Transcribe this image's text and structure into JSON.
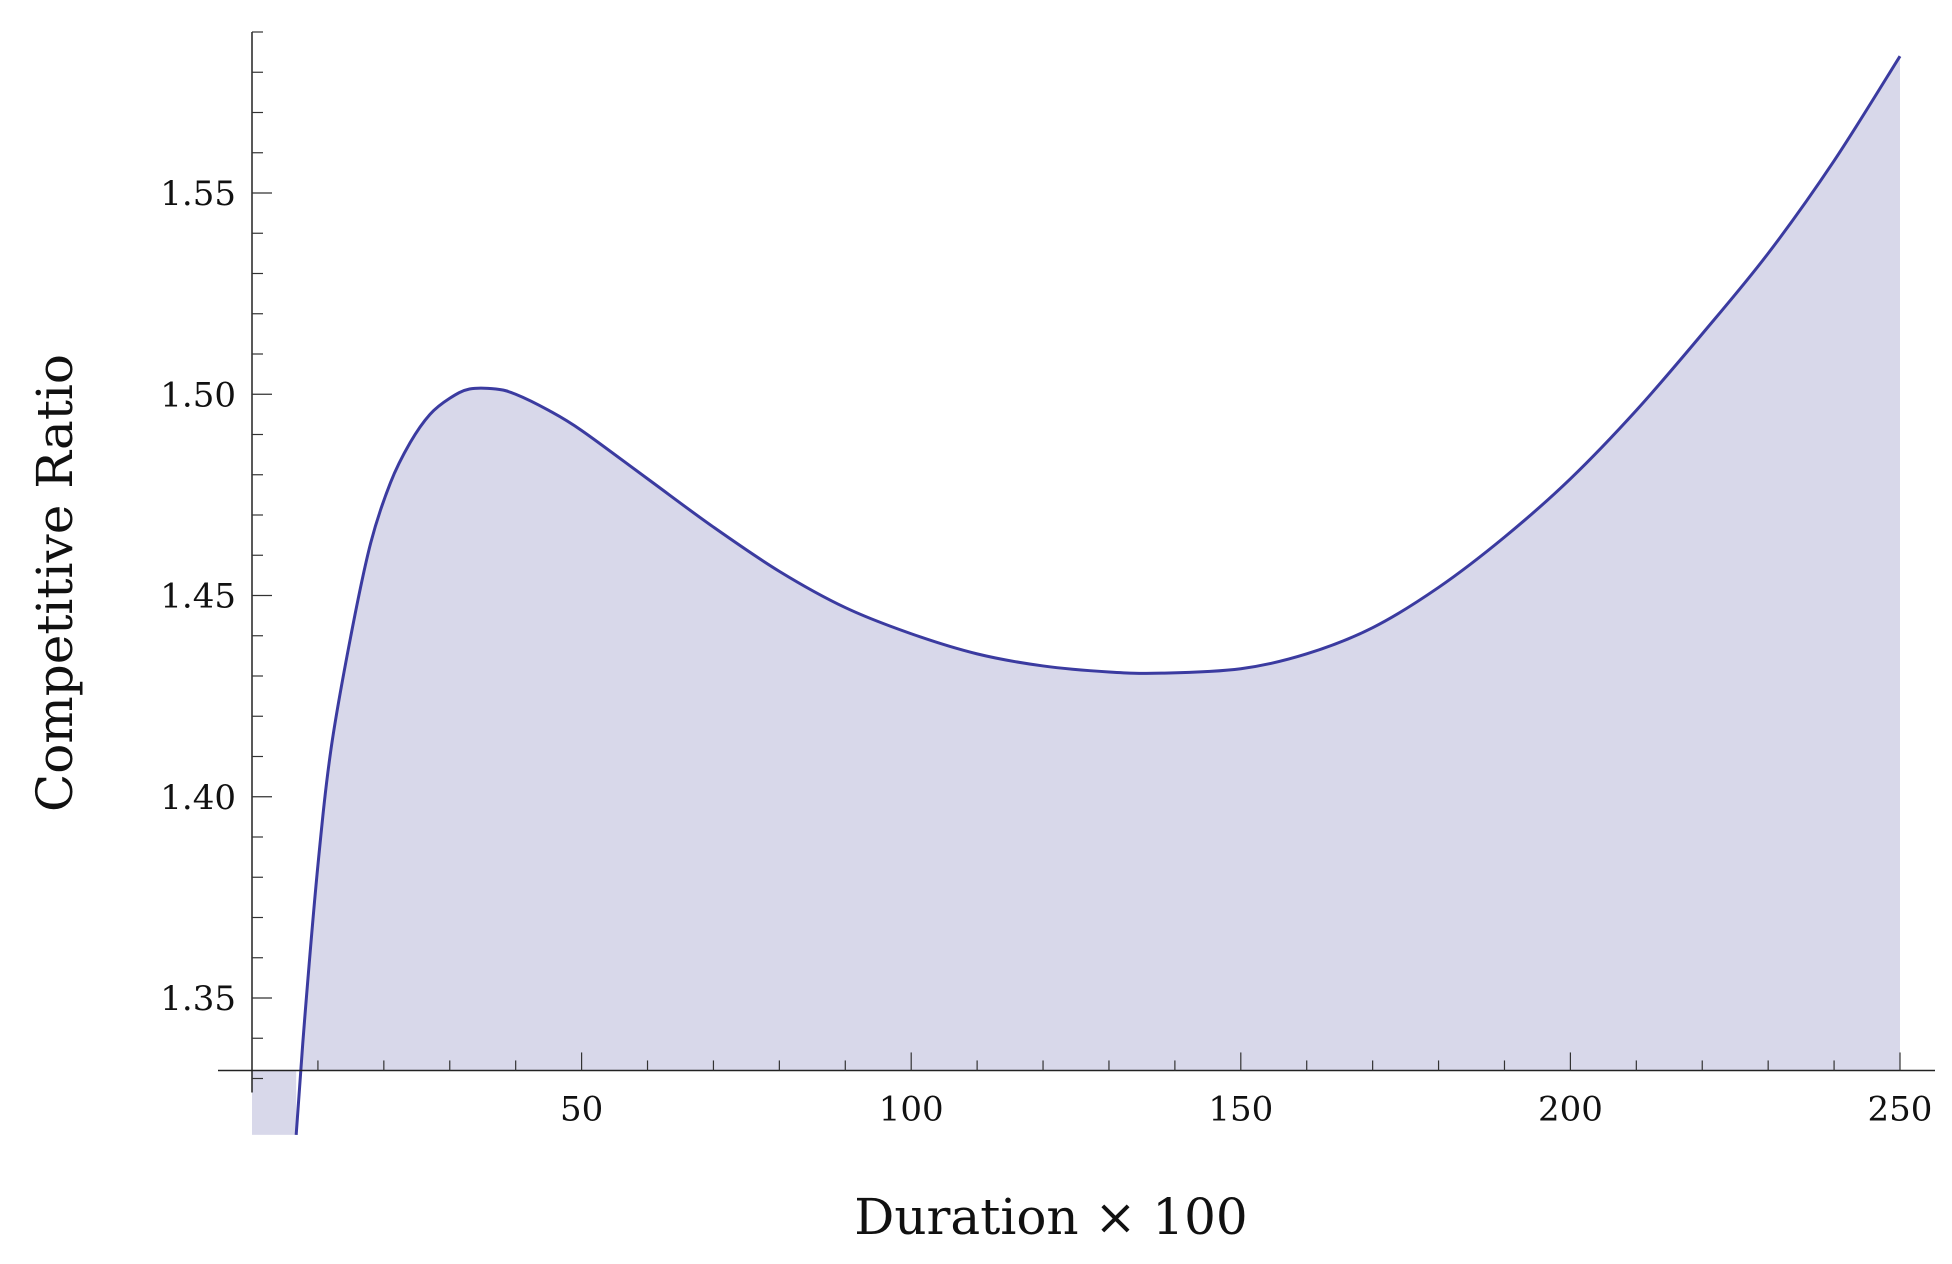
{
  "chart_data": {
    "type": "area",
    "xlabel": "Duration × 100",
    "ylabel": "Competitive Ratio",
    "xlim": [
      0,
      255
    ],
    "ylim": [
      1.316,
      1.59
    ],
    "x_ticks": [
      50,
      100,
      150,
      200,
      250
    ],
    "x_tick_labels": [
      "50",
      "100",
      "150",
      "200",
      "250"
    ],
    "y_ticks": [
      1.35,
      1.4,
      1.45,
      1.5,
      1.55
    ],
    "y_tick_labels": [
      "1.35",
      "1.40",
      "1.45",
      "1.50",
      "1.55"
    ],
    "x_axis_crossing_y": 1.332,
    "grid": false,
    "legend": "none",
    "series": [
      {
        "color": "#3b3ba0",
        "fill_color": "#d8d8ea",
        "x": [
          6.7,
          8,
          10,
          12,
          15,
          18,
          21,
          24,
          27,
          30,
          33,
          37,
          40,
          45,
          50,
          60,
          70,
          80,
          90,
          100,
          110,
          120,
          130,
          138,
          150,
          160,
          170,
          180,
          190,
          200,
          210,
          220,
          230,
          240,
          250
        ],
        "y": [
          1.316,
          1.345,
          1.383,
          1.412,
          1.44,
          1.463,
          1.478,
          1.488,
          1.495,
          1.499,
          1.5013,
          1.5013,
          1.5,
          1.496,
          1.491,
          1.479,
          1.467,
          1.456,
          1.447,
          1.4405,
          1.4355,
          1.4325,
          1.431,
          1.4307,
          1.4318,
          1.4355,
          1.442,
          1.452,
          1.4645,
          1.479,
          1.496,
          1.515,
          1.535,
          1.558,
          1.584
        ]
      }
    ]
  }
}
